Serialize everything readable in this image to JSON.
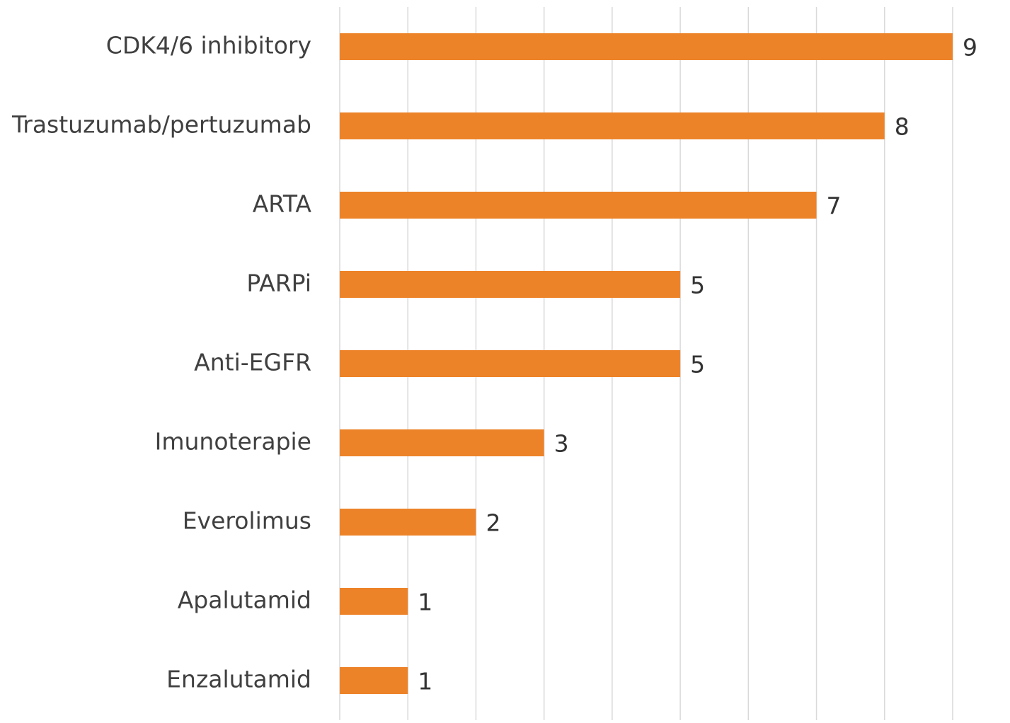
{
  "chart_data": {
    "type": "barh",
    "categories": [
      "CDK4/6 inhibitory",
      "Trastuzumab/pertuzumab",
      "ARTA",
      "PARPi",
      "Anti-EGFR",
      "Imunoterapie",
      "Everolimus",
      "Apalutamid",
      "Enzalutamid"
    ],
    "values": [
      9,
      8,
      7,
      5,
      5,
      3,
      2,
      1,
      1
    ],
    "color": "#ed8329",
    "xlim": [
      0,
      9
    ],
    "xticks": [
      0,
      1,
      2,
      3,
      4,
      5,
      6,
      7,
      8,
      9
    ],
    "grid": true
  }
}
